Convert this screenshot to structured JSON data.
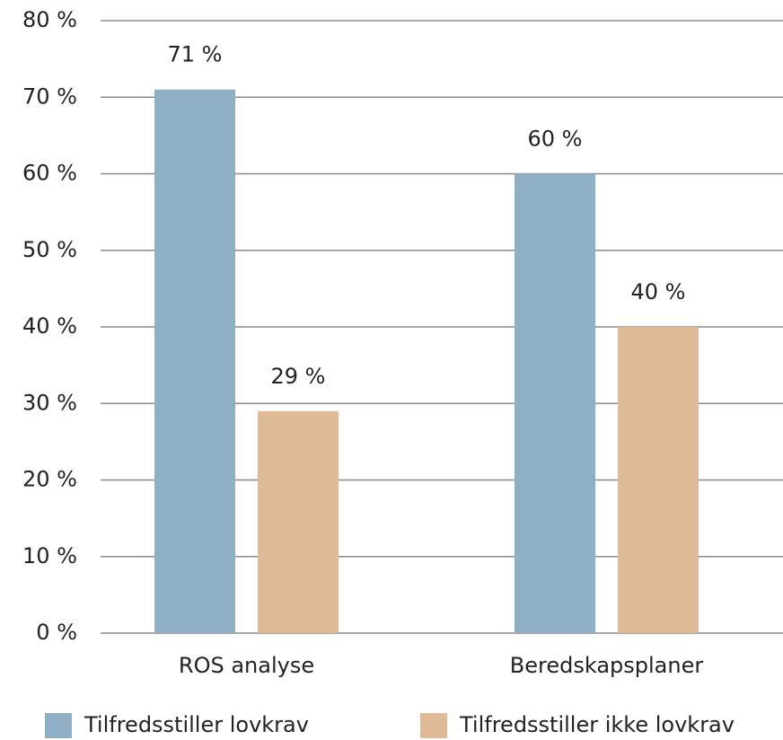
{
  "chart_data": {
    "type": "bar",
    "categories": [
      "ROS analyse",
      "Beredskapsplaner"
    ],
    "series": [
      {
        "name": "Tilfredsstiller lovkrav",
        "color": "#8fafc5",
        "values": [
          71,
          60
        ],
        "value_labels": [
          "71 %",
          "60 %"
        ]
      },
      {
        "name": "Tilfredsstiller ikke lovkrav",
        "color": "#dfba96",
        "values": [
          29,
          40
        ],
        "value_labels": [
          "29 %",
          "40 %"
        ]
      }
    ],
    "ylim": [
      0,
      80
    ],
    "yticks": [
      {
        "value": 0,
        "label": "0 %"
      },
      {
        "value": 10,
        "label": "10 %"
      },
      {
        "value": 20,
        "label": "20 %"
      },
      {
        "value": 30,
        "label": "30 %"
      },
      {
        "value": 40,
        "label": "40 %"
      },
      {
        "value": 50,
        "label": "50 %"
      },
      {
        "value": 60,
        "label": "60 %"
      },
      {
        "value": 70,
        "label": "70 %"
      },
      {
        "value": 80,
        "label": "80 %"
      }
    ],
    "grid": true,
    "legend": "bottom"
  }
}
